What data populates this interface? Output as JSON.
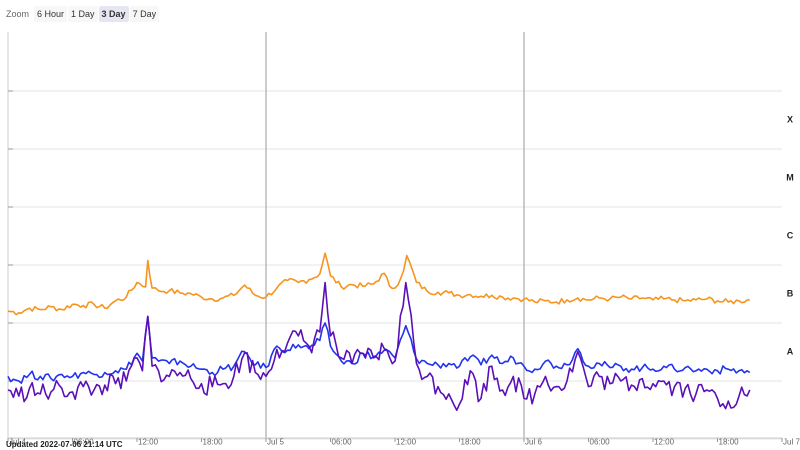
{
  "zoom": {
    "label": "Zoom",
    "buttons": [
      "6 Hour",
      "1 Day",
      "3 Day",
      "7 Day"
    ],
    "selected": "3 Day"
  },
  "updated": "Updated 2022-07-06 21:14 UTC",
  "colors": {
    "orange": "#f7941d",
    "blue": "#2233ee",
    "purple": "#5a10b8",
    "grid": "#e6e6e6",
    "day_divider": "#999999"
  },
  "chart_data": {
    "type": "line",
    "x_ticks": [
      {
        "h": 0,
        "label": "Jul 4"
      },
      {
        "h": 6,
        "label": "06:00"
      },
      {
        "h": 12,
        "label": "12:00"
      },
      {
        "h": 18,
        "label": "18:00"
      },
      {
        "h": 24,
        "label": "Jul 5"
      },
      {
        "h": 30,
        "label": "06:00"
      },
      {
        "h": 36,
        "label": "12:00"
      },
      {
        "h": 42,
        "label": "18:00"
      },
      {
        "h": 48,
        "label": "Jul 6"
      },
      {
        "h": 54,
        "label": "06:00"
      },
      {
        "h": 60,
        "label": "12:00"
      },
      {
        "h": 66,
        "label": "18:00"
      },
      {
        "h": 72,
        "label": "Jul 7"
      }
    ],
    "y_scale": "log",
    "ylim": [
      1e-09,
      0.001
    ],
    "flare_classes": [
      {
        "label": "A",
        "flux": 1e-08
      },
      {
        "label": "B",
        "flux": 1e-07
      },
      {
        "label": "C",
        "flux": 1e-06
      },
      {
        "label": "M",
        "flux": 1e-05
      },
      {
        "label": "X",
        "flux": 0.0001
      }
    ],
    "series": [
      {
        "color": "#f7941d",
        "points": [
          [
            0,
            1.6e-07
          ],
          [
            1,
            1.5e-07
          ],
          [
            2,
            1.8e-07
          ],
          [
            3,
            1.7e-07
          ],
          [
            4,
            1.9e-07
          ],
          [
            5,
            1.7e-07
          ],
          [
            6,
            2.1e-07
          ],
          [
            7,
            2e-07
          ],
          [
            8,
            2.1e-07
          ],
          [
            9,
            1.8e-07
          ],
          [
            10,
            2.4e-07
          ],
          [
            11,
            2.8e-07
          ],
          [
            12,
            5e-07
          ],
          [
            12.8,
            4.2e-07
          ],
          [
            13,
            1.2e-06
          ],
          [
            13.4,
            4e-07
          ],
          [
            14,
            3.6e-07
          ],
          [
            15,
            3.6e-07
          ],
          [
            16,
            3.3e-07
          ],
          [
            17,
            3.2e-07
          ],
          [
            18,
            2.8e-07
          ],
          [
            19,
            2.6e-07
          ],
          [
            20,
            2.7e-07
          ],
          [
            21,
            3e-07
          ],
          [
            22,
            4.5e-07
          ],
          [
            23,
            3e-07
          ],
          [
            24,
            2.8e-07
          ],
          [
            25,
            4e-07
          ],
          [
            26,
            5.4e-07
          ],
          [
            27,
            5e-07
          ],
          [
            28,
            5.6e-07
          ],
          [
            29,
            7e-07
          ],
          [
            29.5,
            1.6e-06
          ],
          [
            30,
            6.5e-07
          ],
          [
            31,
            4.2e-07
          ],
          [
            32,
            4.6e-07
          ],
          [
            33,
            4.3e-07
          ],
          [
            34,
            4.7e-07
          ],
          [
            35,
            7.2e-07
          ],
          [
            35.5,
            4.3e-07
          ],
          [
            36,
            4e-07
          ],
          [
            36.8,
            8e-07
          ],
          [
            37.1,
            1.45e-06
          ],
          [
            38,
            5e-07
          ],
          [
            39,
            3.5e-07
          ],
          [
            40,
            3.4e-07
          ],
          [
            41,
            3.3e-07
          ],
          [
            42,
            3e-07
          ],
          [
            43,
            3.1e-07
          ],
          [
            44,
            2.9e-07
          ],
          [
            45,
            3e-07
          ],
          [
            46,
            2.8e-07
          ],
          [
            47,
            2.7e-07
          ],
          [
            48,
            2.6e-07
          ],
          [
            49,
            2.3e-07
          ],
          [
            50,
            2.4e-07
          ],
          [
            51,
            2.3e-07
          ],
          [
            52,
            2.5e-07
          ],
          [
            53,
            2.7e-07
          ],
          [
            54,
            2.5e-07
          ],
          [
            55,
            2.7e-07
          ],
          [
            56,
            2.6e-07
          ],
          [
            57,
            2.8e-07
          ],
          [
            58,
            2.6e-07
          ],
          [
            59,
            2.7e-07
          ],
          [
            60,
            2.5e-07
          ],
          [
            61,
            2.6e-07
          ],
          [
            62,
            2.5e-07
          ],
          [
            63,
            2.4e-07
          ],
          [
            64,
            2.5e-07
          ],
          [
            65,
            2.6e-07
          ],
          [
            66,
            2.4e-07
          ],
          [
            67,
            2.3e-07
          ],
          [
            68,
            2.4e-07
          ],
          [
            69,
            2.5e-07
          ]
        ]
      },
      {
        "color": "#2233ee",
        "points": [
          [
            0,
            1.2e-08
          ],
          [
            1,
            1e-08
          ],
          [
            2,
            1.3e-08
          ],
          [
            3,
            1.2e-08
          ],
          [
            4,
            1.1e-08
          ],
          [
            5,
            1.3e-08
          ],
          [
            6,
            1.2e-08
          ],
          [
            7,
            1.4e-08
          ],
          [
            8,
            1.3e-08
          ],
          [
            9,
            1.4e-08
          ],
          [
            10,
            1.5e-08
          ],
          [
            11,
            1.6e-08
          ],
          [
            12,
            3e-08
          ],
          [
            12.5,
            2.2e-08
          ],
          [
            13,
            1.3e-07
          ],
          [
            13.4,
            2.5e-08
          ],
          [
            14,
            2.2e-08
          ],
          [
            15,
            2e-08
          ],
          [
            16,
            2.2e-08
          ],
          [
            17,
            1.8e-08
          ],
          [
            18,
            1.6e-08
          ],
          [
            19,
            1.4e-08
          ],
          [
            20,
            1.6e-08
          ],
          [
            21,
            1.8e-08
          ],
          [
            22,
            3.2e-08
          ],
          [
            23,
            1.9e-08
          ],
          [
            24,
            1.7e-08
          ],
          [
            25,
            4e-08
          ],
          [
            26,
            3.4e-08
          ],
          [
            27,
            4.2e-08
          ],
          [
            28,
            3.6e-08
          ],
          [
            29,
            5e-08
          ],
          [
            29.5,
            1e-07
          ],
          [
            30,
            4e-08
          ],
          [
            31,
            2.2e-08
          ],
          [
            32,
            2e-08
          ],
          [
            33,
            3e-08
          ],
          [
            34,
            2.6e-08
          ],
          [
            35,
            3.4e-08
          ],
          [
            36,
            2.5e-08
          ],
          [
            37,
            9e-08
          ],
          [
            38,
            2.4e-08
          ],
          [
            39,
            2e-08
          ],
          [
            40,
            1.9e-08
          ],
          [
            41,
            2e-08
          ],
          [
            42,
            1.8e-08
          ],
          [
            43,
            2.6e-08
          ],
          [
            44,
            1.9e-08
          ],
          [
            45,
            2.8e-08
          ],
          [
            46,
            2e-08
          ],
          [
            47,
            2.5e-08
          ],
          [
            48,
            1.8e-08
          ],
          [
            49,
            1.6e-08
          ],
          [
            50,
            2.2e-08
          ],
          [
            51,
            1.8e-08
          ],
          [
            52,
            1.9e-08
          ],
          [
            53,
            3.6e-08
          ],
          [
            54,
            1.8e-08
          ],
          [
            55,
            2e-08
          ],
          [
            56,
            1.7e-08
          ],
          [
            57,
            1.8e-08
          ],
          [
            58,
            1.6e-08
          ],
          [
            59,
            1.7e-08
          ],
          [
            60,
            1.6e-08
          ],
          [
            61,
            1.8e-08
          ],
          [
            62,
            1.6e-08
          ],
          [
            63,
            1.7e-08
          ],
          [
            64,
            1.5e-08
          ],
          [
            65,
            1.6e-08
          ],
          [
            66,
            1.5e-08
          ],
          [
            67,
            1.6e-08
          ],
          [
            68,
            1.5e-08
          ],
          [
            69,
            1.4e-08
          ]
        ]
      },
      {
        "color": "#5a10b8",
        "points": [
          [
            0,
            7e-09
          ],
          [
            1,
            5.5e-09
          ],
          [
            2,
            7.5e-09
          ],
          [
            3,
            6e-09
          ],
          [
            4,
            6.5e-09
          ],
          [
            5,
            7.5e-09
          ],
          [
            6,
            6.5e-09
          ],
          [
            7,
            8e-09
          ],
          [
            8,
            7e-09
          ],
          [
            9,
            8.5e-09
          ],
          [
            10,
            9e-09
          ],
          [
            11,
            1e-08
          ],
          [
            12,
            2.5e-08
          ],
          [
            12.5,
            1.5e-08
          ],
          [
            13,
            1.3e-07
          ],
          [
            13.4,
            1.8e-08
          ],
          [
            14,
            1.5e-08
          ],
          [
            15,
            1.2e-08
          ],
          [
            16,
            1.4e-08
          ],
          [
            17,
            1.1e-08
          ],
          [
            18,
            9e-09
          ],
          [
            19,
            8e-09
          ],
          [
            20,
            9e-09
          ],
          [
            21,
            1.2e-08
          ],
          [
            22,
            3e-08
          ],
          [
            23,
            1.4e-08
          ],
          [
            24,
            1.2e-08
          ],
          [
            25,
            3.5e-08
          ],
          [
            26,
            4.5e-08
          ],
          [
            27,
            6e-08
          ],
          [
            28,
            4e-08
          ],
          [
            29,
            7e-08
          ],
          [
            29.5,
            5e-07
          ],
          [
            30,
            6e-08
          ],
          [
            31,
            2.5e-08
          ],
          [
            32,
            2e-08
          ],
          [
            33,
            3e-08
          ],
          [
            34,
            2.5e-08
          ],
          [
            35,
            3.6e-08
          ],
          [
            36,
            2.2e-08
          ],
          [
            37,
            5e-07
          ],
          [
            38,
            2e-08
          ],
          [
            39,
            1.2e-08
          ],
          [
            40,
            8e-09
          ],
          [
            41,
            6e-09
          ],
          [
            42,
            4e-09
          ],
          [
            43,
            1.5e-08
          ],
          [
            44,
            5e-09
          ],
          [
            45,
            1.8e-08
          ],
          [
            46,
            7e-09
          ],
          [
            47,
            1.2e-08
          ],
          [
            48,
            5e-09
          ],
          [
            49,
            6e-09
          ],
          [
            50,
            1.2e-08
          ],
          [
            51,
            8e-09
          ],
          [
            52,
            1e-08
          ],
          [
            53,
            3.2e-08
          ],
          [
            54,
            8e-09
          ],
          [
            55,
            1.2e-08
          ],
          [
            56,
            9e-09
          ],
          [
            57,
            1e-08
          ],
          [
            58,
            8.5e-09
          ],
          [
            59,
            1.1e-08
          ],
          [
            60,
            9e-09
          ],
          [
            61,
            1e-08
          ],
          [
            62,
            8e-09
          ],
          [
            63,
            7.5e-09
          ],
          [
            64,
            6e-09
          ],
          [
            65,
            7e-09
          ],
          [
            66,
            5e-09
          ],
          [
            67,
            4.5e-09
          ],
          [
            68,
            5.5e-09
          ],
          [
            69,
            7e-09
          ]
        ]
      }
    ]
  }
}
